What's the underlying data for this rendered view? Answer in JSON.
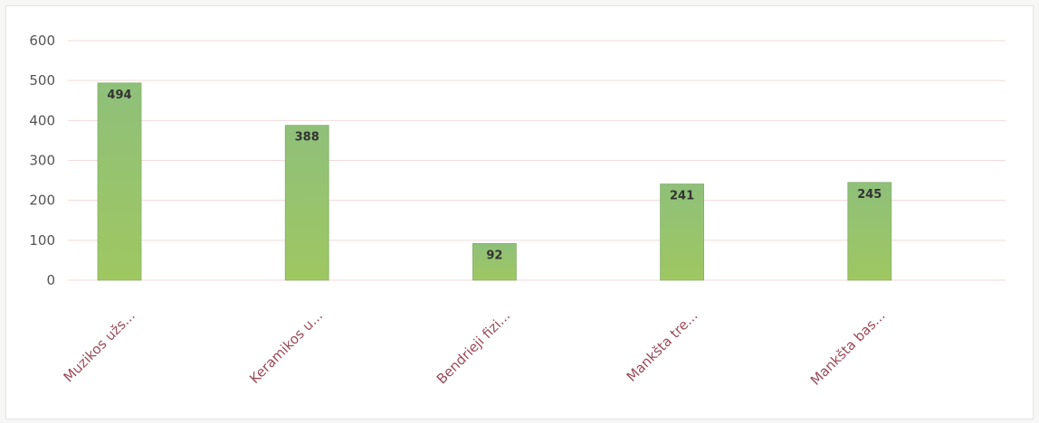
{
  "chart_data": {
    "type": "bar",
    "categories": [
      "Muzikos užs...",
      "Keramikos u...",
      "Bendrieji fizi...",
      "Mankšta tre...",
      "Mankšta bas..."
    ],
    "values": [
      494,
      388,
      92,
      241,
      245
    ],
    "data_labels": [
      "494",
      "388",
      "92",
      "241",
      "245"
    ],
    "y_ticks": [
      "0",
      "100",
      "200",
      "300",
      "400",
      "500",
      "600"
    ],
    "ylim": [
      0,
      600
    ],
    "grid": true,
    "title": "",
    "xlabel": "",
    "ylabel": ""
  },
  "colors": {
    "bar_top": "#8fc07a",
    "bar_bottom": "#9fc761",
    "grid": "#f3dada",
    "tick_label": "#555555",
    "category_label": "#9a4a5a",
    "data_label": "#333333"
  }
}
